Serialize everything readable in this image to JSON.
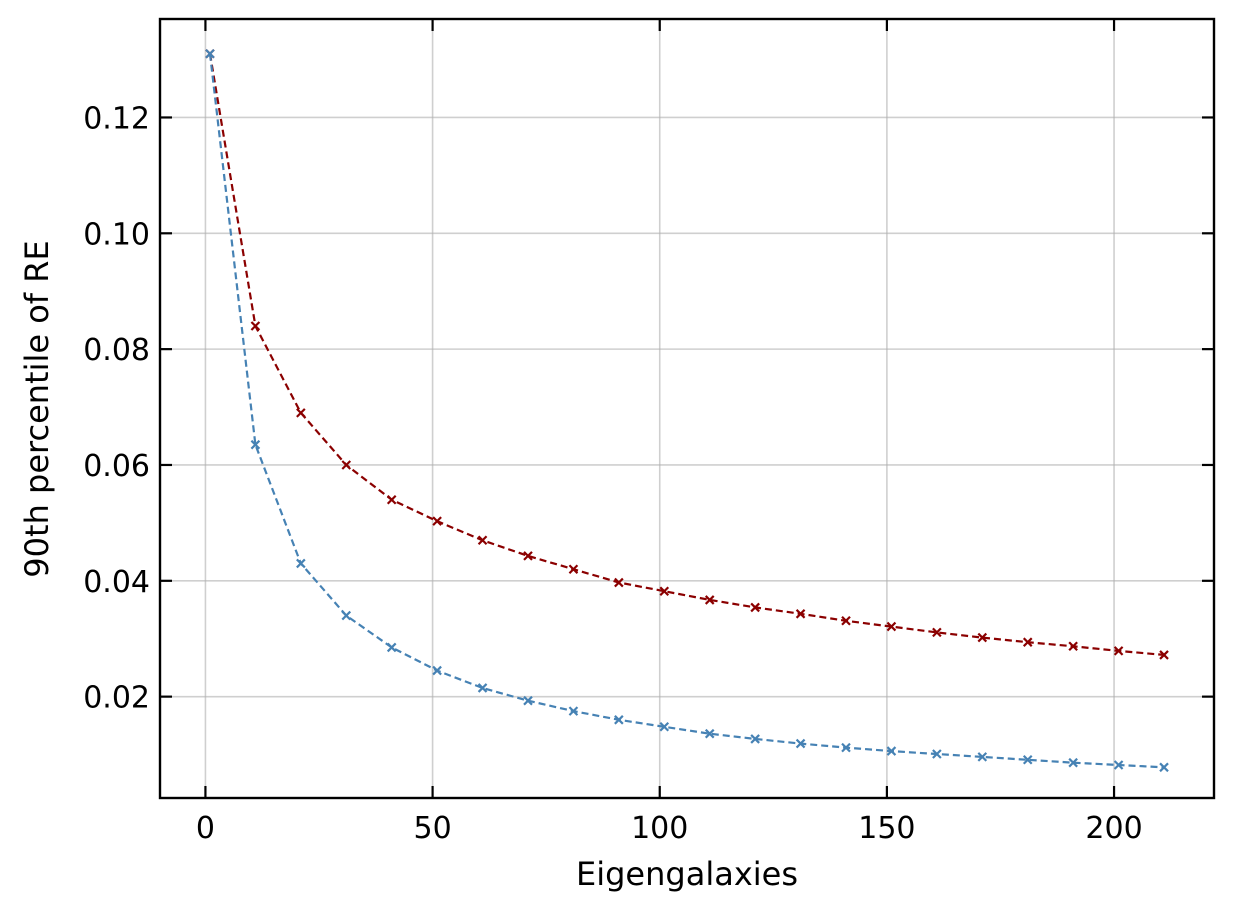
{
  "chart_data": {
    "type": "line",
    "xlabel": "Eigengalaxies",
    "ylabel": "90th percentile of RE",
    "xlim": [
      -10,
      222
    ],
    "ylim": [
      0.0025,
      0.137
    ],
    "xticks": [
      0,
      50,
      100,
      150,
      200
    ],
    "xtick_labels": [
      "0",
      "50",
      "100",
      "150",
      "200"
    ],
    "yticks": [
      0.02,
      0.04,
      0.06,
      0.08,
      0.1,
      0.12
    ],
    "ytick_labels": [
      "0.02",
      "0.04",
      "0.06",
      "0.08",
      "0.10",
      "0.12"
    ],
    "grid": true,
    "x": [
      1,
      11,
      21,
      31,
      41,
      51,
      61,
      71,
      81,
      91,
      101,
      111,
      121,
      131,
      141,
      151,
      161,
      171,
      181,
      191,
      201,
      211
    ],
    "series": [
      {
        "color": "#8b0000",
        "line_style": "dashed",
        "marker": "x",
        "values": [
          0.131,
          0.084,
          0.069,
          0.06,
          0.054,
          0.0503,
          0.047,
          0.0443,
          0.042,
          0.0397,
          0.0382,
          0.0367,
          0.0354,
          0.0343,
          0.0331,
          0.0321,
          0.0311,
          0.0302,
          0.0294,
          0.0287,
          0.0279,
          0.0272
        ]
      },
      {
        "color": "#4682b4",
        "line_style": "dashed",
        "marker": "x",
        "values": [
          0.131,
          0.0635,
          0.043,
          0.034,
          0.0285,
          0.0245,
          0.0215,
          0.0193,
          0.0175,
          0.016,
          0.0148,
          0.0136,
          0.0127,
          0.0119,
          0.0112,
          0.0106,
          0.0101,
          0.0096,
          0.0091,
          0.0086,
          0.0082,
          0.0078
        ]
      }
    ]
  }
}
